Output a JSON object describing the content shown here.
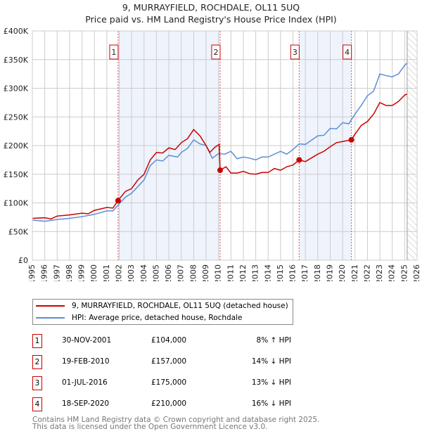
{
  "chart_data": {
    "type": "line",
    "title": "9, MURRAYFIELD, ROCHDALE, OL11 5UQ",
    "subtitle": "Price paid vs. HM Land Registry's House Price Index (HPI)",
    "xlim": [
      1995,
      2026
    ],
    "ylim": [
      0,
      400000
    ],
    "x_ticks": [
      "1995",
      "1996",
      "1997",
      "1998",
      "1999",
      "2000",
      "2001",
      "2002",
      "2003",
      "2004",
      "2005",
      "2006",
      "2007",
      "2008",
      "2009",
      "2010",
      "2011",
      "2012",
      "2013",
      "2014",
      "2015",
      "2016",
      "2017",
      "2018",
      "2019",
      "2020",
      "2021",
      "2022",
      "2023",
      "2024",
      "2025",
      "2026"
    ],
    "y_ticks": [
      {
        "v": 0,
        "l": "£0"
      },
      {
        "v": 50000,
        "l": "£50K"
      },
      {
        "v": 100000,
        "l": "£100K"
      },
      {
        "v": 150000,
        "l": "£150K"
      },
      {
        "v": 200000,
        "l": "£200K"
      },
      {
        "v": 250000,
        "l": "£250K"
      },
      {
        "v": 300000,
        "l": "£300K"
      },
      {
        "v": 350000,
        "l": "£350K"
      },
      {
        "v": 400000,
        "l": "£400K"
      }
    ],
    "series": [
      {
        "name": "9, MURRAYFIELD, ROCHDALE, OL11 5UQ (detached house)",
        "color": "#cc0000",
        "points": [
          [
            1995,
            73000
          ],
          [
            1996,
            74000
          ],
          [
            1996.5,
            72000
          ],
          [
            1997,
            77000
          ],
          [
            1998,
            79000
          ],
          [
            1999,
            82000
          ],
          [
            1999.5,
            81000
          ],
          [
            2000,
            87000
          ],
          [
            2001,
            92000
          ],
          [
            2001.5,
            91000
          ],
          [
            2001.9,
            104000
          ],
          [
            2002.5,
            120000
          ],
          [
            2003,
            125000
          ],
          [
            2003.5,
            140000
          ],
          [
            2004,
            150000
          ],
          [
            2004.5,
            175000
          ],
          [
            2005,
            188000
          ],
          [
            2005.5,
            187000
          ],
          [
            2006,
            196000
          ],
          [
            2006.5,
            193000
          ],
          [
            2007,
            205000
          ],
          [
            2007.5,
            212000
          ],
          [
            2008,
            228000
          ],
          [
            2008.5,
            217000
          ],
          [
            2009,
            200000
          ],
          [
            2009.3,
            188000
          ],
          [
            2009.7,
            197000
          ],
          [
            2010.05,
            202000
          ],
          [
            2010.13,
            157000
          ],
          [
            2010.6,
            163000
          ],
          [
            2011,
            152000
          ],
          [
            2011.5,
            152000
          ],
          [
            2012,
            155000
          ],
          [
            2012.5,
            151000
          ],
          [
            2013,
            150000
          ],
          [
            2013.5,
            153000
          ],
          [
            2014,
            153000
          ],
          [
            2014.5,
            160000
          ],
          [
            2015,
            157000
          ],
          [
            2015.5,
            163000
          ],
          [
            2016,
            166000
          ],
          [
            2016.5,
            175000
          ],
          [
            2017,
            172000
          ],
          [
            2018,
            185000
          ],
          [
            2018.5,
            190000
          ],
          [
            2019,
            198000
          ],
          [
            2019.5,
            205000
          ],
          [
            2020,
            207000
          ],
          [
            2020.7,
            210000
          ],
          [
            2021,
            220000
          ],
          [
            2021.5,
            235000
          ],
          [
            2022,
            242000
          ],
          [
            2022.5,
            255000
          ],
          [
            2023,
            275000
          ],
          [
            2023.5,
            270000
          ],
          [
            2024,
            270000
          ],
          [
            2024.5,
            277000
          ],
          [
            2025,
            288000
          ],
          [
            2025.2,
            290000
          ]
        ]
      },
      {
        "name": "HPI: Average price, detached house, Rochdale",
        "color": "#5b8fd4",
        "points": [
          [
            1995,
            70000
          ],
          [
            1996,
            68000
          ],
          [
            1997,
            71000
          ],
          [
            1998,
            73000
          ],
          [
            1999,
            76000
          ],
          [
            2000,
            80000
          ],
          [
            2001,
            86000
          ],
          [
            2001.5,
            86000
          ],
          [
            2001.9,
            96000
          ],
          [
            2002.5,
            110000
          ],
          [
            2003,
            117000
          ],
          [
            2004,
            140000
          ],
          [
            2004.5,
            165000
          ],
          [
            2005,
            175000
          ],
          [
            2005.5,
            173000
          ],
          [
            2006,
            183000
          ],
          [
            2006.7,
            180000
          ],
          [
            2007,
            188000
          ],
          [
            2007.5,
            195000
          ],
          [
            2008,
            210000
          ],
          [
            2008.5,
            203000
          ],
          [
            2009,
            200000
          ],
          [
            2009.5,
            178000
          ],
          [
            2010,
            186000
          ],
          [
            2010.5,
            185000
          ],
          [
            2011,
            190000
          ],
          [
            2011.5,
            177000
          ],
          [
            2012,
            180000
          ],
          [
            2012.5,
            178000
          ],
          [
            2013,
            175000
          ],
          [
            2013.5,
            180000
          ],
          [
            2014,
            180000
          ],
          [
            2015,
            190000
          ],
          [
            2015.5,
            185000
          ],
          [
            2016,
            193000
          ],
          [
            2016.5,
            203000
          ],
          [
            2017,
            202000
          ],
          [
            2018,
            217000
          ],
          [
            2018.5,
            218000
          ],
          [
            2019,
            230000
          ],
          [
            2019.5,
            229000
          ],
          [
            2020,
            240000
          ],
          [
            2020.5,
            238000
          ],
          [
            2021,
            255000
          ],
          [
            2021.5,
            270000
          ],
          [
            2022,
            287000
          ],
          [
            2022.5,
            295000
          ],
          [
            2023,
            325000
          ],
          [
            2023.5,
            322000
          ],
          [
            2024,
            320000
          ],
          [
            2024.5,
            325000
          ],
          [
            2025,
            340000
          ],
          [
            2025.2,
            344000
          ]
        ]
      }
    ],
    "sales": [
      {
        "label": "1",
        "x": 2001.91,
        "y": 104000
      },
      {
        "label": "2",
        "x": 2010.13,
        "y": 157000
      },
      {
        "label": "3",
        "x": 2016.5,
        "y": 175000
      },
      {
        "label": "4",
        "x": 2020.71,
        "y": 210000
      }
    ],
    "shaded": [
      [
        2001.91,
        2010.13
      ],
      [
        2016.5,
        2020.71
      ]
    ],
    "forecast_from": 2025.2,
    "legend_position": "below"
  },
  "legend": {
    "property": "9, MURRAYFIELD, ROCHDALE, OL11 5UQ (detached house)",
    "hpi": "HPI: Average price, detached house, Rochdale"
  },
  "transactions": [
    {
      "num": "1",
      "date": "30-NOV-2001",
      "price": "£104,000",
      "hpi": "8% ↑ HPI"
    },
    {
      "num": "2",
      "date": "19-FEB-2010",
      "price": "£157,000",
      "hpi": "14% ↓ HPI"
    },
    {
      "num": "3",
      "date": "01-JUL-2016",
      "price": "£175,000",
      "hpi": "13% ↓ HPI"
    },
    {
      "num": "4",
      "date": "18-SEP-2020",
      "price": "£210,000",
      "hpi": "16% ↓ HPI"
    }
  ],
  "footer": {
    "line1": "Contains HM Land Registry data © Crown copyright and database right 2025.",
    "line2": "This data is licensed under the Open Government Licence v3.0."
  }
}
